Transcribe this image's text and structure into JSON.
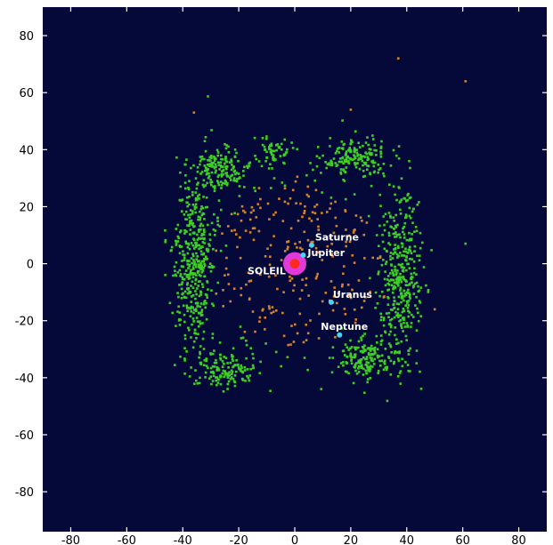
{
  "chart_data": {
    "type": "scatter",
    "xlim": [
      -90,
      90
    ],
    "ylim": [
      -94,
      90
    ],
    "x_ticks": [
      -80,
      -60,
      -40,
      -20,
      0,
      20,
      40,
      60,
      80
    ],
    "y_ticks": [
      80,
      60,
      40,
      20,
      0,
      -20,
      -40,
      -60,
      -80
    ],
    "grid": false,
    "colors": {
      "plot_background": "#05093a",
      "outer_disk": "#3fcf22",
      "inner_objects": "#d6832c",
      "sun": "#ff2a1e",
      "inner_planets_band": "#e23ad8",
      "giant_planets": "#49d3ef"
    },
    "bodies": [
      {
        "label": "SOLEIL",
        "x": 0,
        "y": 0,
        "kind": "sun"
      },
      {
        "label": "Jupiter",
        "x": 3,
        "y": 3,
        "kind": "planet"
      },
      {
        "label": "Saturne",
        "x": 6,
        "y": 6.5,
        "kind": "planet"
      },
      {
        "label": "Uranus",
        "x": 13,
        "y": -13.5,
        "kind": "planet"
      },
      {
        "label": "Neptune",
        "x": 16,
        "y": -25,
        "kind": "planet"
      }
    ],
    "scatter_clusters": [
      {
        "id": "outer-left",
        "color_key": "outer_disk",
        "n": 420,
        "cx": -36,
        "cy": 0,
        "rx": 6,
        "ry": 26,
        "seed": 11
      },
      {
        "id": "outer-right",
        "color_key": "outer_disk",
        "n": 380,
        "cx": 38,
        "cy": -4,
        "rx": 6,
        "ry": 24,
        "seed": 12
      },
      {
        "id": "outer-top-left",
        "color_key": "outer_disk",
        "n": 160,
        "cx": -27,
        "cy": 34,
        "rx": 8,
        "ry": 6,
        "seed": 13
      },
      {
        "id": "outer-top-right",
        "color_key": "outer_disk",
        "n": 170,
        "cx": 22,
        "cy": 37,
        "rx": 10,
        "ry": 6,
        "seed": 14
      },
      {
        "id": "outer-top-mid",
        "color_key": "outer_disk",
        "n": 60,
        "cx": -7,
        "cy": 40,
        "rx": 5,
        "ry": 4,
        "seed": 15
      },
      {
        "id": "outer-bottom-left",
        "color_key": "outer_disk",
        "n": 140,
        "cx": -24,
        "cy": -37,
        "rx": 9,
        "ry": 5,
        "seed": 16
      },
      {
        "id": "outer-bottom-right",
        "color_key": "outer_disk",
        "n": 170,
        "cx": 26,
        "cy": -33,
        "rx": 9,
        "ry": 6,
        "seed": 17
      },
      {
        "id": "scatter-outer",
        "color_key": "outer_disk",
        "n": 90,
        "cx": 0,
        "cy": 0,
        "rx": 48,
        "ry": 46,
        "seed": 18
      },
      {
        "id": "inner-ring",
        "color_key": "inner_objects",
        "n": 150,
        "cx": 0,
        "cy": 0,
        "rx": 30,
        "ry": 30,
        "seed": 21
      },
      {
        "id": "inner-core",
        "color_key": "inner_objects",
        "n": 80,
        "cx": 2,
        "cy": 2,
        "rx": 16,
        "ry": 14,
        "seed": 22
      }
    ],
    "outliers": [
      {
        "x": 37,
        "y": 72,
        "color_key": "inner_objects"
      },
      {
        "x": 61,
        "y": 64,
        "color_key": "inner_objects"
      },
      {
        "x": 61,
        "y": 7,
        "color_key": "outer_disk"
      },
      {
        "x": -36,
        "y": 53,
        "color_key": "inner_objects"
      },
      {
        "x": 20,
        "y": 54,
        "color_key": "inner_objects"
      },
      {
        "x": 50,
        "y": -16,
        "color_key": "inner_objects"
      }
    ]
  }
}
